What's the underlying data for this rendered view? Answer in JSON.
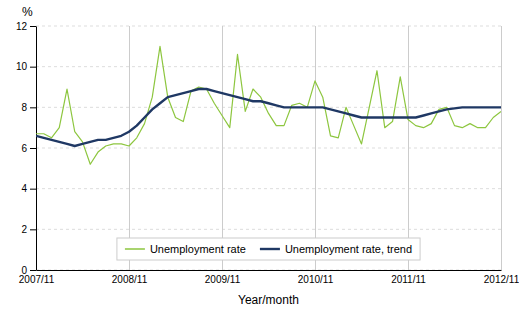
{
  "chart_data": {
    "type": "line",
    "xlabel": "Year/month",
    "ylabel": "%",
    "categories": [
      "2007/11",
      null,
      null,
      null,
      null,
      null,
      null,
      null,
      null,
      null,
      null,
      null,
      "2008/11",
      null,
      null,
      null,
      null,
      null,
      null,
      null,
      null,
      null,
      null,
      null,
      "2009/11",
      null,
      null,
      null,
      null,
      null,
      null,
      null,
      null,
      null,
      null,
      null,
      "2010/11",
      null,
      null,
      null,
      null,
      null,
      null,
      null,
      null,
      null,
      null,
      null,
      "2011/11",
      null,
      null,
      null,
      null,
      null,
      null,
      null,
      null,
      null,
      null,
      null,
      "2012/11"
    ],
    "series": [
      {
        "name": "Unemployment rate",
        "color": "#8dc63f",
        "values": [
          6.7,
          6.7,
          6.5,
          7.0,
          8.9,
          6.8,
          6.3,
          5.2,
          5.8,
          6.1,
          6.2,
          6.2,
          6.1,
          6.5,
          7.2,
          8.5,
          11.0,
          8.5,
          7.5,
          7.3,
          8.8,
          9.0,
          8.9,
          8.2,
          7.6,
          7.0,
          10.6,
          7.8,
          8.9,
          8.5,
          7.7,
          7.1,
          7.1,
          8.1,
          8.2,
          8.0,
          9.3,
          8.5,
          6.6,
          6.5,
          8.0,
          7.1,
          6.2,
          8.0,
          9.8,
          7.0,
          7.3,
          9.5,
          7.4,
          7.1,
          7.0,
          7.2,
          7.9,
          8.0,
          7.1,
          7.0,
          7.2,
          7.0,
          7.0,
          7.5,
          7.8
        ]
      },
      {
        "name": "Unemployment rate, trend",
        "color": "#1f3864",
        "values": [
          6.6,
          6.5,
          6.4,
          6.3,
          6.2,
          6.1,
          6.2,
          6.3,
          6.4,
          6.4,
          6.5,
          6.6,
          6.8,
          7.1,
          7.5,
          7.9,
          8.2,
          8.5,
          8.6,
          8.7,
          8.8,
          8.9,
          8.9,
          8.8,
          8.7,
          8.6,
          8.5,
          8.4,
          8.3,
          8.3,
          8.2,
          8.1,
          8.0,
          8.0,
          8.0,
          8.0,
          8.0,
          8.0,
          7.9,
          7.8,
          7.7,
          7.6,
          7.5,
          7.5,
          7.5,
          7.5,
          7.5,
          7.5,
          7.5,
          7.5,
          7.6,
          7.7,
          7.8,
          7.9,
          7.95,
          8.0,
          8.0,
          8.0,
          8.0,
          8.0,
          8.0
        ]
      }
    ],
    "ylim": [
      0,
      12
    ],
    "yticks": [
      0,
      2,
      4,
      6,
      8,
      10,
      12
    ],
    "grid": true,
    "legend": "lower center"
  }
}
